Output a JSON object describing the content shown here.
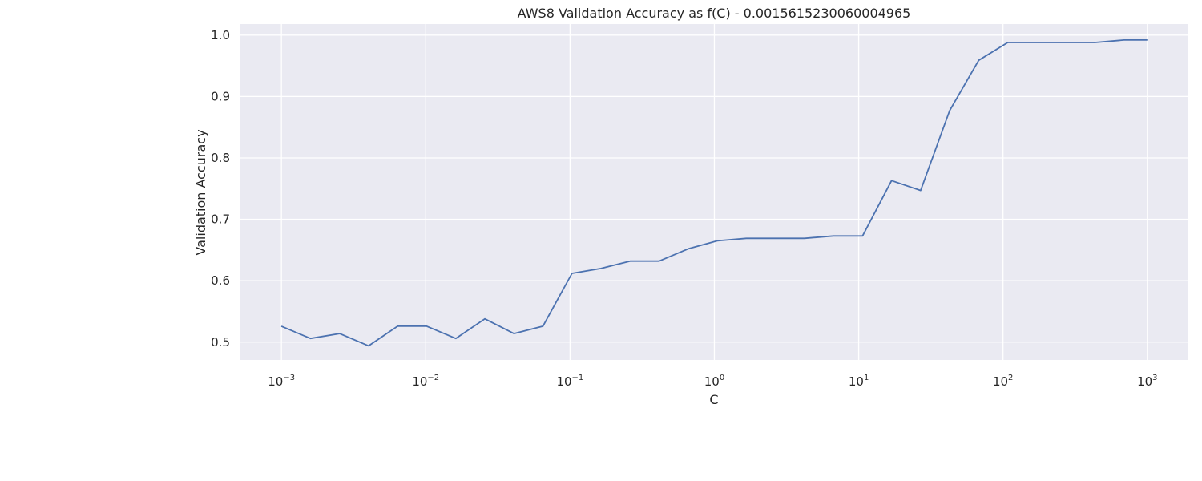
{
  "chart_data": {
    "type": "line",
    "title": "AWS8 Validation Accuracy as f(C) - 0.0015615230060004965",
    "xlabel": "C",
    "ylabel": "Validation Accuracy",
    "xscale": "log",
    "xlim": [
      0.00052,
      1900
    ],
    "ylim": [
      0.471,
      1.018
    ],
    "grid": true,
    "x_ticks": [
      {
        "base": "10",
        "exp": "−3",
        "value": 0.001
      },
      {
        "base": "10",
        "exp": "−2",
        "value": 0.01
      },
      {
        "base": "10",
        "exp": "−1",
        "value": 0.1
      },
      {
        "base": "10",
        "exp": "0",
        "value": 1
      },
      {
        "base": "10",
        "exp": "1",
        "value": 10
      },
      {
        "base": "10",
        "exp": "2",
        "value": 100
      },
      {
        "base": "10",
        "exp": "3",
        "value": 1000
      }
    ],
    "y_ticks": [
      "0.5",
      "0.6",
      "0.7",
      "0.8",
      "0.9",
      "1.0"
    ],
    "colors": {
      "plot_background": "#eaeaf2",
      "grid": "#ffffff",
      "line": "#4c72b0",
      "text": "#262626"
    },
    "series": [
      {
        "x": [
          0.001,
          0.00159,
          0.00253,
          0.00402,
          0.00639,
          0.01016,
          0.01615,
          0.02567,
          0.04081,
          0.06487,
          0.10313,
          0.16395,
          0.26062,
          0.4143,
          0.65862,
          1.04701,
          1.66443,
          2.64595,
          4.20627,
          6.6867,
          10.6298,
          16.8983,
          26.8632,
          42.7045,
          67.8872,
          107.92,
          171.562,
          272.737,
          433.575,
          689.261,
          1000
        ],
        "y": [
          0.526,
          0.506,
          0.514,
          0.494,
          0.526,
          0.526,
          0.506,
          0.538,
          0.514,
          0.526,
          0.612,
          0.62,
          0.632,
          0.632,
          0.652,
          0.665,
          0.669,
          0.669,
          0.669,
          0.673,
          0.673,
          0.763,
          0.747,
          0.877,
          0.959,
          0.988,
          0.988,
          0.988,
          0.988,
          0.992,
          0.992
        ]
      }
    ]
  }
}
